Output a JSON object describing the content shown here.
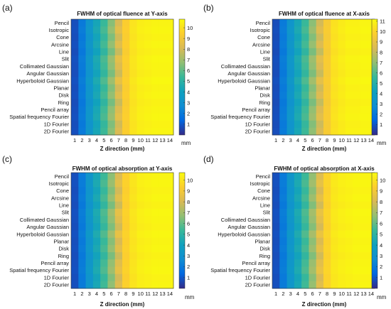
{
  "colors": {
    "colormap": "parula",
    "stops": [
      "#352a87",
      "#0268e1",
      "#108ed2",
      "#0fa1be",
      "#38b899",
      "#92bf73",
      "#d9ba56",
      "#fcce2e",
      "#f9fb0e"
    ],
    "low": "#352a87",
    "high": "#f9fb0e"
  },
  "chart_data": [
    {
      "panel": "(a)",
      "type": "heatmap",
      "title": "FWHM of optical fluence at Y-axis",
      "xlabel": "Z direction (mm)",
      "colorbar_label": "mm",
      "colorbar_ticks": [
        1,
        2,
        3,
        4,
        5,
        6,
        7,
        8,
        9,
        10
      ],
      "clim": [
        0,
        10.8
      ],
      "x": [
        1,
        2,
        3,
        4,
        5,
        6,
        7,
        8,
        9,
        10,
        11,
        12,
        13,
        14
      ],
      "sources": [
        "Pencil",
        "Isotropic",
        "Cone",
        "Arcsine",
        "Line",
        "Slit",
        "Collimated Gaussian",
        "Angular Gaussian",
        "Hyperboloid Gaussian",
        "Planar",
        "Disk",
        "Ring",
        "Pencil array",
        "Spatial frequency Fourier",
        "1D Fourier",
        "2D Fourier"
      ],
      "profile": [
        0.8,
        2.0,
        3.2,
        4.3,
        5.4,
        6.6,
        8.1,
        9.4,
        10.1,
        10.4,
        10.5,
        10.6,
        10.6,
        10.6
      ]
    },
    {
      "panel": "(b)",
      "type": "heatmap",
      "title": "FWHM of optical fluence at X-axis",
      "xlabel": "Z direction (mm)",
      "colorbar_label": "mm",
      "colorbar_ticks": [
        1,
        2,
        3,
        4,
        5,
        6,
        7,
        8,
        9,
        10,
        11
      ],
      "clim": [
        0,
        11.2
      ],
      "x": [
        1,
        2,
        3,
        4,
        5,
        6,
        7,
        8,
        9,
        10,
        11,
        12,
        13,
        14
      ],
      "sources": [
        "Pencil",
        "Isotropic",
        "Cone",
        "Arcsine",
        "Line",
        "Slit",
        "Collimated Gaussian",
        "Angular Gaussian",
        "Hyperboloid Gaussian",
        "Planar",
        "Disk",
        "Ring",
        "Pencil array",
        "Spatial frequency Fourier",
        "1D Fourier",
        "2D Fourier"
      ],
      "profile": [
        0.8,
        2.1,
        3.3,
        4.5,
        5.6,
        6.9,
        8.3,
        9.6,
        10.4,
        10.7,
        10.9,
        10.9,
        11.0,
        11.0
      ]
    },
    {
      "panel": "(c)",
      "type": "heatmap",
      "title": "FWHM of optical absorption at Y-axis",
      "xlabel": "Z direction (mm)",
      "colorbar_label": "mm",
      "colorbar_ticks": [
        1,
        2,
        3,
        4,
        5,
        6,
        7,
        8,
        9,
        10
      ],
      "clim": [
        0,
        10.7
      ],
      "x": [
        1,
        2,
        3,
        4,
        5,
        6,
        7,
        8,
        9,
        10,
        11,
        12,
        13,
        14
      ],
      "sources": [
        "Pencil",
        "Isotropic",
        "Cone",
        "Arcsine",
        "Line",
        "Slit",
        "Collimated Gaussian",
        "Angular Gaussian",
        "Hyperboloid Gaussian",
        "Planar",
        "Disk",
        "Ring",
        "Pencil array",
        "Spatial frequency Fourier",
        "1D Fourier",
        "2D Fourier"
      ],
      "profile": [
        0.8,
        2.0,
        3.2,
        4.3,
        5.4,
        6.6,
        8.1,
        9.4,
        10.0,
        10.3,
        10.4,
        10.5,
        10.5,
        10.5
      ]
    },
    {
      "panel": "(d)",
      "type": "heatmap",
      "title": "FWHM of optical absorption at X-axis",
      "xlabel": "Z direction (mm)",
      "colorbar_label": "mm",
      "colorbar_ticks": [
        1,
        2,
        3,
        4,
        5,
        6,
        7,
        8,
        9,
        10
      ],
      "clim": [
        0,
        10.7
      ],
      "x": [
        1,
        2,
        3,
        4,
        5,
        6,
        7,
        8,
        9,
        10,
        11,
        12,
        13,
        14
      ],
      "sources": [
        "Pencil",
        "Isotropic",
        "Cone",
        "Arcsine",
        "Line",
        "Slit",
        "Collimated Gaussian",
        "Angular Gaussian",
        "Hyperboloid Gaussian",
        "Planar",
        "Disk",
        "Ring",
        "Pencil array",
        "Spatial frequency Fourier",
        "1D Fourier",
        "2D Fourier"
      ],
      "profile": [
        0.8,
        2.0,
        3.2,
        4.3,
        5.4,
        6.7,
        8.2,
        9.5,
        10.1,
        10.3,
        10.4,
        10.5,
        10.5,
        10.5
      ]
    }
  ]
}
